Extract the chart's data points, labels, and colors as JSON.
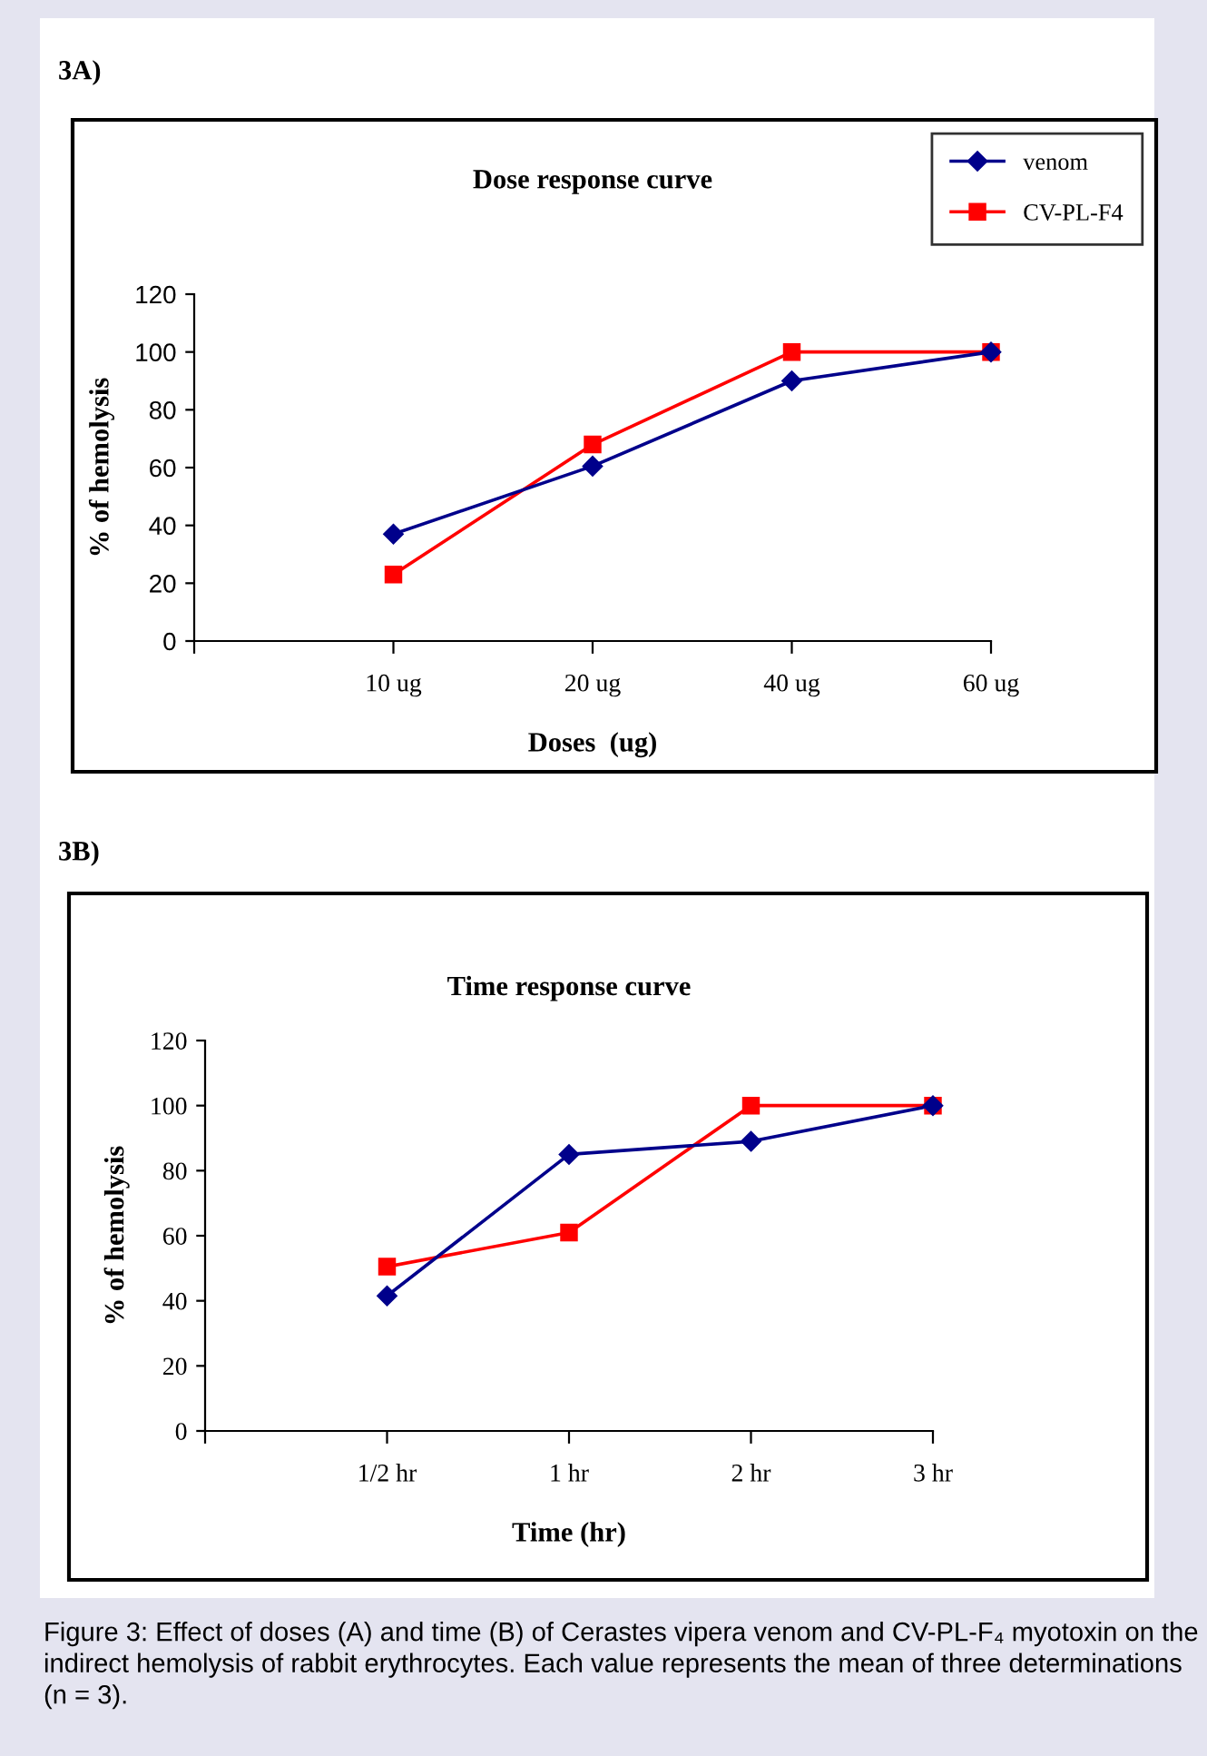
{
  "chart_data": [
    {
      "type": "line",
      "title": "Dose response curve",
      "xlabel": "Doses  (ug)",
      "ylabel": "% of hemolysis",
      "categories": [
        null,
        "10 ug",
        "20 ug",
        "40 ug",
        "60 ug"
      ],
      "series": [
        {
          "name": "venom",
          "color": "#00008b",
          "marker": "diamond",
          "values": [
            null,
            37,
            60.5,
            90,
            100
          ]
        },
        {
          "name": "CV-PL-F4",
          "color": "#ff0000",
          "marker": "square",
          "values": [
            null,
            23,
            68,
            100,
            100
          ]
        }
      ],
      "ylim": [
        0,
        120
      ],
      "yticks": [
        0,
        20,
        40,
        60,
        80,
        100,
        120
      ],
      "grid": false,
      "legend": "top right",
      "annotations": [
        "3A)"
      ]
    },
    {
      "type": "line",
      "title": "Time response curve",
      "xlabel": "Time (hr)",
      "ylabel": "% of hemolysis",
      "categories": [
        null,
        "1/2 hr",
        "1 hr",
        "2 hr",
        "3 hr"
      ],
      "series": [
        {
          "color": "#00008b",
          "marker": "diamond",
          "values": [
            null,
            41.5,
            85,
            89,
            100
          ]
        },
        {
          "color": "#ff0000",
          "marker": "square",
          "values": [
            null,
            50.5,
            61,
            100,
            100
          ]
        }
      ],
      "ylim": [
        0,
        120
      ],
      "yticks": [
        0,
        20,
        40,
        60,
        80,
        100,
        120
      ],
      "grid": false,
      "legend": false,
      "annotations": [
        "3B)",
        "Figure 3: Effect of doses (A) and time (B) of Cerastes vipera venom and CV-PL-F₄ myotoxin on the indirect hemolysis of rabbit erythrocytes. Each value represents the mean of three determinations (n = 3)."
      ]
    }
  ]
}
